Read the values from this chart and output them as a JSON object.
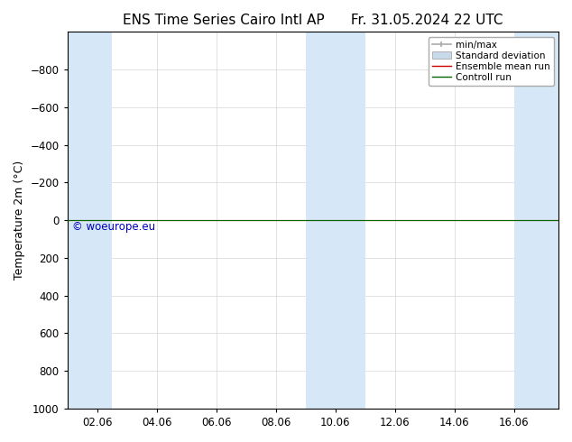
{
  "title_left": "ENS Time Series Cairo Intl AP",
  "title_right": "Fr. 31.05.2024 22 UTC",
  "ylabel": "Temperature 2m (°C)",
  "watermark": "© woeurope.eu",
  "background_color": "#ffffff",
  "plot_bg_color": "#ffffff",
  "ylim_bottom": 1000,
  "ylim_top": -1000,
  "yticks": [
    -800,
    -600,
    -400,
    -200,
    0,
    200,
    400,
    600,
    800,
    1000
  ],
  "x_labels": [
    "02.06",
    "04.06",
    "06.06",
    "08.06",
    "10.06",
    "12.06",
    "14.06",
    "16.06"
  ],
  "x_positions": [
    1,
    3,
    5,
    7,
    9,
    11,
    13,
    15
  ],
  "x_min": 0.0,
  "x_max": 16.5,
  "shaded_bands": [
    {
      "xmin": 0.0,
      "xmax": 1.5
    },
    {
      "xmin": 8.0,
      "xmax": 10.0
    },
    {
      "xmin": 15.0,
      "xmax": 16.5
    }
  ],
  "shaded_color": "#d6e8f7",
  "shaded_alpha": 1.0,
  "minmax_color": "#aaaaaa",
  "stddev_color": "#c8daea",
  "stddev_edge_color": "#aaaaaa",
  "ensemble_mean_color": "#cc0000",
  "control_run_color": "#006600",
  "line_y_value": 0,
  "legend_labels": [
    "min/max",
    "Standard deviation",
    "Ensemble mean run",
    "Controll run"
  ],
  "tick_label_fontsize": 8.5,
  "title_fontsize": 11,
  "ylabel_fontsize": 9,
  "watermark_color": "#0000bb",
  "watermark_fontsize": 8.5,
  "spine_color": "#000000",
  "title_font": "DejaVu Sans"
}
